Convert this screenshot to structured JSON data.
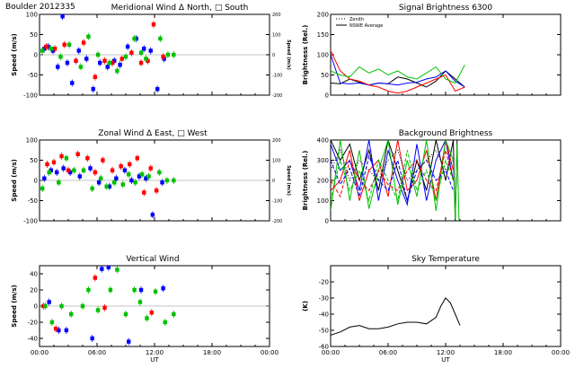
{
  "figure": {
    "header_left": "Boulder   2012335",
    "colors": {
      "north": "#0000ff",
      "south": "#ff0000",
      "east": "#ff0000",
      "west": "#00c000",
      "extra": "#00c000",
      "line": "#000000"
    }
  },
  "chart_data": [
    {
      "id": "meridional",
      "type": "scatter",
      "title": "Meridional Wind   Δ North, □ South",
      "xlabel": "",
      "ylabel": "Speed (m/s)",
      "y2label": "Speed (m/s)",
      "xlim": [
        0,
        24
      ],
      "ylim": [
        -100,
        100
      ],
      "y2lim": [
        -200,
        200
      ],
      "xticks": [
        0,
        6,
        12,
        18,
        24
      ],
      "xticklabels": [
        "",
        "",
        "",
        "",
        ""
      ],
      "yticks": [
        -100,
        -50,
        0,
        50,
        100
      ],
      "yticklabels": [
        "-100",
        "-50",
        "0",
        "50",
        "100"
      ],
      "y2ticks": [
        -200,
        -100,
        0,
        100,
        200
      ],
      "y2ticklabels": [
        "-200",
        "-100",
        "0",
        "100",
        "200"
      ],
      "series": [
        {
          "color": "#0000ff",
          "x": [
            0.5,
            0.9,
            1.4,
            1.9,
            2.4,
            2.9,
            3.4,
            4.1,
            4.9,
            5.6,
            6.3,
            7.1,
            7.8,
            8.4,
            9.2,
            10.1,
            10.9,
            11.6,
            12.3,
            13.0
          ],
          "y": [
            15,
            20,
            10,
            -30,
            95,
            -20,
            -70,
            10,
            -10,
            -85,
            -20,
            -30,
            -15,
            -25,
            20,
            40,
            15,
            10,
            -85,
            -10
          ]
        },
        {
          "color": "#ff0000",
          "x": [
            0.7,
            1.6,
            2.6,
            3.8,
            4.6,
            5.8,
            6.8,
            7.6,
            8.6,
            9.6,
            10.6,
            11.3,
            11.9,
            12.9
          ],
          "y": [
            20,
            15,
            25,
            -15,
            30,
            -55,
            -15,
            -20,
            -10,
            5,
            -20,
            -15,
            75,
            -5
          ]
        },
        {
          "color": "#00c000",
          "x": [
            0.3,
            1.2,
            2.2,
            3.1,
            4.3,
            5.1,
            6.1,
            7.3,
            8.1,
            9.0,
            9.9,
            10.6,
            11.1,
            12.6,
            13.4,
            14.0
          ],
          "y": [
            10,
            15,
            -5,
            25,
            -30,
            45,
            0,
            -20,
            -40,
            -5,
            40,
            5,
            -10,
            40,
            0,
            0
          ]
        }
      ]
    },
    {
      "id": "signal",
      "type": "line",
      "title": "Signal Brightness       6300",
      "xlabel": "",
      "ylabel": "Brightness (Rel.)",
      "xlim": [
        0,
        24
      ],
      "ylim": [
        0,
        200
      ],
      "xticks": [
        0,
        6,
        12,
        18,
        24
      ],
      "xticklabels": [
        "",
        "",
        "",
        "",
        ""
      ],
      "yticks": [
        0,
        50,
        100,
        150,
        200
      ],
      "yticklabels": [
        "0",
        "50",
        "100",
        "150",
        "200"
      ],
      "legend": [
        "Zenith",
        "NSWE Average"
      ],
      "series": [
        {
          "color": "#000000",
          "style": "solid",
          "x": [
            0,
            1,
            2,
            3,
            4,
            5,
            6,
            7,
            8,
            9,
            10,
            11,
            12,
            13,
            14
          ],
          "y": [
            30,
            28,
            40,
            32,
            25,
            30,
            28,
            45,
            40,
            30,
            20,
            35,
            60,
            40,
            20
          ]
        },
        {
          "color": "#0000ff",
          "style": "solid",
          "x": [
            0,
            1,
            2,
            3,
            4,
            5,
            6,
            7,
            8,
            9,
            10,
            11,
            12,
            13,
            14
          ],
          "y": [
            100,
            30,
            28,
            30,
            25,
            30,
            28,
            25,
            30,
            32,
            40,
            45,
            60,
            35,
            20
          ]
        },
        {
          "color": "#ff0000",
          "style": "solid",
          "x": [
            0,
            1,
            2,
            3,
            4,
            5,
            6,
            7,
            8,
            9,
            10,
            11,
            12,
            13,
            14
          ],
          "y": [
            110,
            60,
            40,
            35,
            25,
            20,
            10,
            5,
            10,
            20,
            30,
            40,
            50,
            10,
            20
          ]
        },
        {
          "color": "#00c000",
          "style": "solid",
          "x": [
            0,
            1,
            2,
            3,
            4,
            5,
            6,
            7,
            8,
            9,
            10,
            11,
            12,
            13,
            14
          ],
          "y": [
            60,
            50,
            45,
            70,
            55,
            65,
            50,
            60,
            45,
            40,
            55,
            70,
            40,
            30,
            75
          ]
        }
      ]
    },
    {
      "id": "zonal",
      "type": "scatter",
      "title": "Zonal Wind      Δ East, □ West",
      "xlabel": "",
      "ylabel": "Speed (m/s)",
      "y2label": "Speed (m/s)",
      "xlim": [
        0,
        24
      ],
      "ylim": [
        -100,
        100
      ],
      "y2lim": [
        -200,
        200
      ],
      "xticks": [
        0,
        6,
        12,
        18,
        24
      ],
      "xticklabels": [
        "",
        "",
        "",
        "",
        ""
      ],
      "yticks": [
        -100,
        -50,
        0,
        50,
        100
      ],
      "yticklabels": [
        "-100",
        "-50",
        "0",
        "50",
        "100"
      ],
      "y2ticks": [
        -200,
        -100,
        0,
        100,
        200
      ],
      "y2ticklabels": [
        "-200",
        "-100",
        "0",
        "100",
        "200"
      ],
      "series": [
        {
          "color": "#0000ff",
          "x": [
            0.5,
            1.2,
            1.8,
            2.5,
            3.2,
            4.2,
            5.3,
            6.2,
            7.3,
            8.0,
            8.9,
            9.6,
            10.4,
            11.1,
            11.8,
            12.8
          ],
          "y": [
            5,
            25,
            20,
            30,
            20,
            10,
            30,
            -5,
            -15,
            5,
            25,
            0,
            10,
            5,
            -85,
            -5
          ]
        },
        {
          "color": "#ff0000",
          "x": [
            0.8,
            1.5,
            2.3,
            3.0,
            4.0,
            5.0,
            5.8,
            6.6,
            7.6,
            8.5,
            9.4,
            10.2,
            10.9,
            11.6,
            12.2
          ],
          "y": [
            40,
            45,
            60,
            25,
            65,
            55,
            20,
            50,
            25,
            35,
            40,
            55,
            -30,
            30,
            -25
          ]
        },
        {
          "color": "#00c000",
          "x": [
            0.3,
            1.0,
            2.0,
            2.8,
            3.6,
            4.6,
            5.5,
            6.4,
            7.0,
            7.8,
            8.7,
            9.3,
            10.0,
            10.7,
            11.4,
            12.5,
            13.3,
            14.0
          ],
          "y": [
            -20,
            20,
            -5,
            55,
            25,
            25,
            -20,
            5,
            -15,
            -5,
            -10,
            15,
            -5,
            15,
            10,
            20,
            0,
            0
          ]
        }
      ]
    },
    {
      "id": "background",
      "type": "line",
      "title": "Background Brightness",
      "xlabel": "",
      "ylabel": "Brightness (Rel.)",
      "xlim": [
        0,
        24
      ],
      "ylim": [
        0,
        400
      ],
      "xticks": [
        0,
        6,
        12,
        18,
        24
      ],
      "xticklabels": [
        "",
        "",
        "",
        "",
        ""
      ],
      "yticks": [
        0,
        100,
        200,
        300,
        400
      ],
      "yticklabels": [
        "0",
        "100",
        "200",
        "300",
        "400"
      ],
      "series": [
        {
          "color": "#000000",
          "style": "solid",
          "x": [
            0,
            1,
            2,
            3,
            4,
            5,
            6,
            7,
            8,
            9,
            10,
            11,
            12,
            12.8,
            13.0,
            13.2
          ],
          "y": [
            400,
            300,
            380,
            200,
            350,
            150,
            400,
            250,
            100,
            300,
            150,
            400,
            200,
            400,
            0,
            400
          ]
        },
        {
          "color": "#0000ff",
          "style": "solid",
          "x": [
            0,
            1,
            2,
            3,
            4,
            5,
            6,
            7,
            8,
            9,
            10,
            11,
            12,
            12.8
          ],
          "y": [
            380,
            250,
            300,
            150,
            400,
            100,
            350,
            200,
            80,
            380,
            100,
            300,
            400,
            200
          ]
        },
        {
          "color": "#ff0000",
          "style": "solid",
          "x": [
            0,
            1,
            2,
            3,
            4,
            5,
            6,
            7,
            8,
            9,
            10,
            11,
            12,
            12.8
          ],
          "y": [
            150,
            200,
            350,
            100,
            250,
            300,
            120,
            400,
            150,
            200,
            350,
            100,
            400,
            250
          ]
        },
        {
          "color": "#00c000",
          "style": "solid",
          "x": [
            0,
            1,
            2,
            3,
            4,
            5,
            6,
            7,
            8,
            9,
            10,
            11,
            12,
            12.8,
            13.0,
            13.2,
            13.4
          ],
          "y": [
            50,
            400,
            100,
            350,
            60,
            250,
            400,
            80,
            300,
            120,
            400,
            50,
            400,
            300,
            10,
            380,
            0
          ]
        },
        {
          "color": "#ff0000",
          "style": "dashed",
          "x": [
            0,
            1,
            2,
            3,
            4,
            5,
            6,
            7,
            8,
            9,
            10,
            11,
            12,
            12.8
          ],
          "y": [
            200,
            120,
            300,
            200,
            150,
            250,
            180,
            150,
            250,
            300,
            200,
            150,
            350,
            200
          ]
        },
        {
          "color": "#0000ff",
          "style": "dashed",
          "x": [
            0,
            1,
            2,
            3,
            4,
            5,
            6,
            7,
            8,
            9,
            10,
            11,
            12,
            12.8
          ],
          "y": [
            300,
            180,
            260,
            120,
            320,
            200,
            150,
            300,
            100,
            250,
            300,
            200,
            250,
            150
          ]
        },
        {
          "color": "#00c000",
          "style": "dashed",
          "x": [
            0,
            1,
            2,
            3,
            4,
            5,
            6,
            7,
            8,
            9,
            10,
            11,
            12,
            12.8
          ],
          "y": [
            100,
            300,
            150,
            250,
            100,
            300,
            200,
            100,
            350,
            150,
            250,
            100,
            300,
            200
          ]
        },
        {
          "color": "#000000",
          "style": "dotted",
          "x": [
            0,
            1,
            2,
            3,
            4,
            5,
            6,
            7,
            8,
            9,
            10,
            11,
            12,
            12.8
          ],
          "y": [
            250,
            350,
            200,
            300,
            250,
            200,
            300,
            350,
            200,
            250,
            300,
            350,
            250,
            300
          ]
        }
      ]
    },
    {
      "id": "vertical",
      "type": "scatter",
      "title": "Vertical Wind",
      "xlabel": "UT",
      "ylabel": "Speed (m/s)",
      "xlim": [
        0,
        24
      ],
      "ylim": [
        -50,
        50
      ],
      "xticks": [
        0,
        6,
        12,
        18,
        24
      ],
      "xticklabels": [
        "00:00",
        "06:00",
        "12:00",
        "18:00",
        "00:00"
      ],
      "yticks": [
        -40,
        -20,
        0,
        20,
        40
      ],
      "yticklabels": [
        "-40",
        "-20",
        "0",
        "20",
        "40"
      ],
      "series": [
        {
          "color": "#0000ff",
          "x": [
            1.0,
            2.0,
            2.8,
            5.5,
            6.5,
            7.2,
            9.3,
            10.6,
            12.9
          ],
          "y": [
            5,
            -30,
            -30,
            -40,
            46,
            48,
            -44,
            20,
            22
          ]
        },
        {
          "color": "#ff0000",
          "x": [
            0.4,
            1.7,
            5.8,
            6.8,
            11.7
          ],
          "y": [
            0,
            -28,
            35,
            -2,
            -8
          ]
        },
        {
          "color": "#00c000",
          "x": [
            0.6,
            1.3,
            2.3,
            3.3,
            4.5,
            5.1,
            6.1,
            7.4,
            8.1,
            9.0,
            9.9,
            10.5,
            11.2,
            12.1,
            13.1,
            14.0
          ],
          "y": [
            0,
            -20,
            0,
            -10,
            0,
            20,
            -5,
            20,
            45,
            -10,
            20,
            5,
            -15,
            18,
            -20,
            -10
          ]
        }
      ]
    },
    {
      "id": "sky",
      "type": "line",
      "title": "Sky Temperature",
      "xlabel": "UT",
      "ylabel": "(K)",
      "xlim": [
        0,
        24
      ],
      "ylim": [
        -60,
        -10
      ],
      "xticks": [
        0,
        6,
        12,
        18,
        24
      ],
      "xticklabels": [
        "00:00",
        "06:00",
        "12:00",
        "18:00",
        "00:00"
      ],
      "yticks": [
        -60,
        -50,
        -40,
        -30,
        -20
      ],
      "yticklabels": [
        "-60",
        "-50",
        "-40",
        "-30",
        "-20"
      ],
      "series": [
        {
          "color": "#000000",
          "style": "solid",
          "x": [
            0,
            1,
            2,
            3,
            4,
            5,
            6,
            7,
            8,
            9,
            10,
            11,
            11.5,
            12,
            12.5,
            13,
            13.5
          ],
          "y": [
            -53,
            -51,
            -48,
            -47,
            -49,
            -49,
            -48,
            -46,
            -45,
            -45,
            -46,
            -42,
            -35,
            -30,
            -33,
            -40,
            -47
          ]
        }
      ]
    }
  ]
}
